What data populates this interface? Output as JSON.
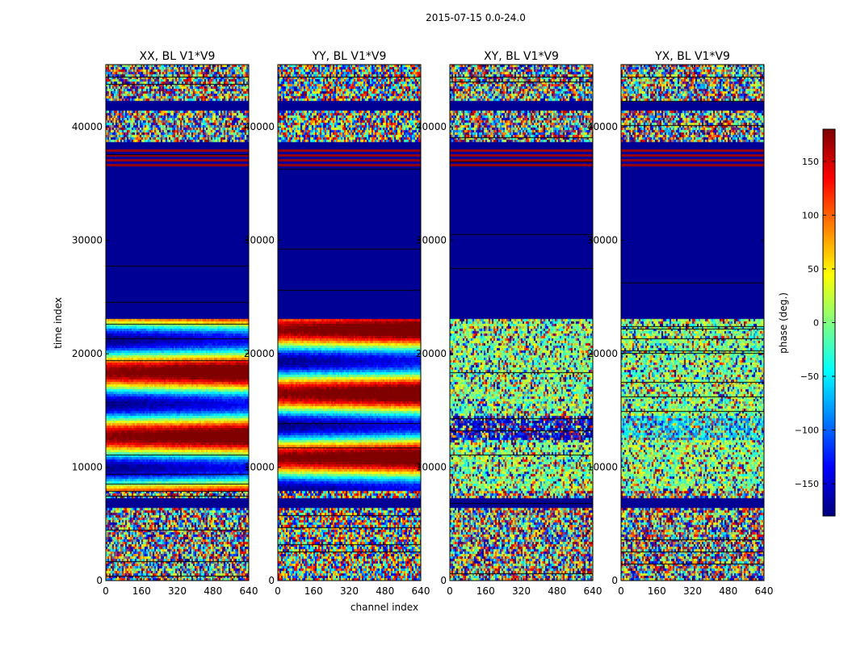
{
  "figure": {
    "suptitle": "2015-07-15 0.0-24.0"
  },
  "chart_data": {
    "type": "heatmap",
    "xlabel": "channel index",
    "ylabel": "time index",
    "xlim": [
      0,
      640
    ],
    "ylim": [
      0,
      45500
    ],
    "x_ticks": [
      0,
      160,
      320,
      480,
      640
    ],
    "y_ticks": [
      0,
      10000,
      20000,
      30000,
      40000
    ],
    "panels": [
      {
        "title": "XX, BL V1*V9",
        "id": "xx"
      },
      {
        "title": "YY, BL V1*V9",
        "id": "yy"
      },
      {
        "title": "XY, BL V1*V9",
        "id": "xy"
      },
      {
        "title": "YX, BL V1*V9",
        "id": "yx"
      }
    ],
    "colorbar": {
      "label": "phase (deg.)",
      "colormap": "jet",
      "range": [
        -180,
        180
      ],
      "ticks": [
        -150,
        -100,
        -50,
        0,
        50,
        100,
        150
      ],
      "tick_labels": [
        "−150",
        "−100",
        "−50",
        "0",
        "50",
        "100",
        "150"
      ]
    }
  }
}
